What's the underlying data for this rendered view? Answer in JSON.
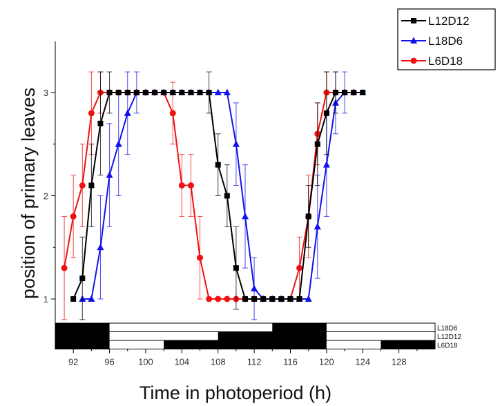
{
  "chart_data": {
    "type": "line",
    "xlabel": "Time in photoperiod (h)",
    "ylabel": "position of primary leaves",
    "xlim": [
      90,
      132
    ],
    "ylim": [
      0.45,
      3.5
    ],
    "xticks": [
      92,
      96,
      100,
      104,
      108,
      112,
      116,
      120,
      124,
      128
    ],
    "yticks": [
      1,
      2,
      3
    ],
    "legend_position": "top-right",
    "series": [
      {
        "name": "L12D12",
        "color": "#000000",
        "marker": "square",
        "x": [
          92,
          93,
          94,
          95,
          96,
          97,
          98,
          99,
          100,
          101,
          102,
          103,
          104,
          105,
          106,
          107,
          108,
          109,
          110,
          111,
          112,
          113,
          114,
          115,
          116,
          117,
          118,
          119,
          120,
          121,
          122,
          123,
          124
        ],
        "y": [
          1.0,
          1.2,
          2.1,
          2.7,
          3.0,
          3.0,
          3.0,
          3.0,
          3.0,
          3.0,
          3.0,
          3.0,
          3.0,
          3.0,
          3.0,
          3.0,
          2.3,
          2.0,
          1.3,
          1.0,
          1.0,
          1.0,
          1.0,
          1.0,
          1.0,
          1.0,
          1.8,
          2.5,
          2.8,
          3.0,
          3.0,
          3.0,
          3.0
        ],
        "err": [
          0,
          0.4,
          0.4,
          0.5,
          0.2,
          0,
          0,
          0,
          0,
          0,
          0,
          0,
          0,
          0,
          0,
          0.2,
          0.3,
          0.3,
          0.4,
          0,
          0,
          0,
          0,
          0,
          0,
          0,
          0.3,
          0.4,
          0.4,
          0.2,
          0,
          0,
          0
        ]
      },
      {
        "name": "L18D6",
        "color": "#1111ee",
        "marker": "triangle",
        "x": [
          93,
          94,
          95,
          96,
          97,
          98,
          99,
          100,
          101,
          102,
          103,
          104,
          105,
          106,
          107,
          108,
          109,
          110,
          111,
          112,
          113,
          114,
          115,
          116,
          117,
          118,
          119,
          120,
          121,
          122,
          123,
          124
        ],
        "y": [
          1.0,
          1.0,
          1.5,
          2.2,
          2.5,
          2.8,
          3.0,
          3.0,
          3.0,
          3.0,
          3.0,
          3.0,
          3.0,
          3.0,
          3.0,
          3.0,
          3.0,
          2.5,
          1.8,
          1.1,
          1.0,
          1.0,
          1.0,
          1.0,
          1.0,
          1.0,
          1.7,
          2.3,
          2.9,
          3.0,
          3.0,
          3.0
        ],
        "err": [
          0,
          0,
          0.5,
          0.5,
          0.5,
          0.4,
          0.2,
          0,
          0,
          0,
          0,
          0,
          0,
          0,
          0,
          0,
          0,
          0.4,
          0.5,
          0.3,
          0,
          0,
          0,
          0,
          0,
          0,
          0.5,
          0.5,
          0.3,
          0.2,
          0,
          0
        ]
      },
      {
        "name": "L6D18",
        "color": "#ee1111",
        "marker": "circle",
        "x": [
          91,
          92,
          93,
          94,
          95,
          96,
          97,
          98,
          99,
          100,
          101,
          102,
          103,
          104,
          105,
          106,
          107,
          108,
          109,
          110,
          111,
          112,
          113,
          114,
          115,
          116,
          117,
          118,
          119,
          120,
          121,
          122,
          123
        ],
        "y": [
          1.3,
          1.8,
          2.1,
          2.8,
          3.0,
          3.0,
          3.0,
          3.0,
          3.0,
          3.0,
          3.0,
          3.0,
          2.8,
          2.1,
          2.1,
          1.4,
          1.0,
          1.0,
          1.0,
          1.0,
          1.0,
          1.0,
          1.0,
          1.0,
          1.0,
          1.0,
          1.3,
          1.8,
          2.6,
          3.0,
          3.0,
          3.0,
          3.0
        ],
        "err": [
          0.5,
          0.4,
          0.4,
          0.4,
          0.2,
          0,
          0,
          0,
          0,
          0,
          0,
          0,
          0.3,
          0.3,
          0.3,
          0.4,
          0,
          0,
          0,
          0,
          0,
          0,
          0,
          0,
          0,
          0,
          0.3,
          0.4,
          0.3,
          0.2,
          0,
          0,
          0
        ]
      }
    ],
    "photoperiod_bars": [
      {
        "label": "L18D6",
        "dark": [
          [
            90,
            96
          ],
          [
            114,
            120
          ]
        ]
      },
      {
        "label": "L12D12",
        "dark": [
          [
            90,
            96
          ],
          [
            108,
            120
          ]
        ]
      },
      {
        "label": "L6D18",
        "dark": [
          [
            90,
            96
          ],
          [
            102,
            120
          ],
          [
            126,
            132
          ]
        ]
      }
    ]
  }
}
